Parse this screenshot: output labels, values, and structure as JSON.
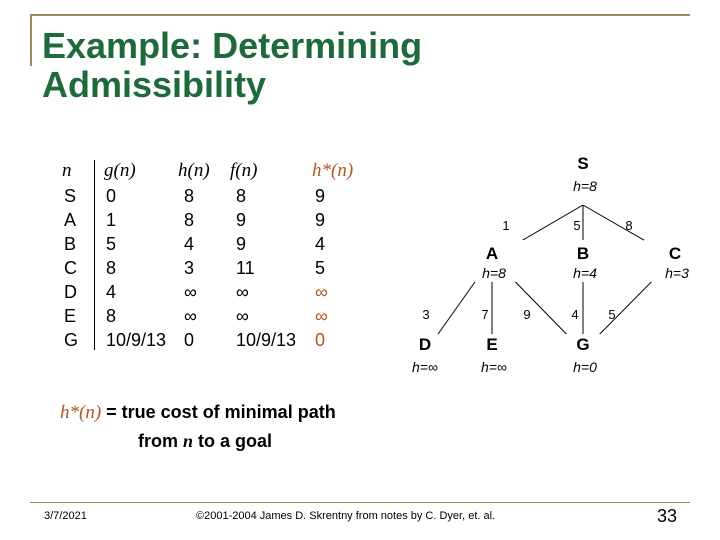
{
  "slide": {
    "title_line1": "Example: Determining",
    "title_line2": "Admissibility",
    "date": "3/7/2021",
    "copyright": "©2001-2004 James D. Skrentny from notes by C. Dyer, et. al.",
    "page_number": "33"
  },
  "table": {
    "headers": {
      "n": "n",
      "g": "g(n)",
      "h": "h(n)",
      "f": "f(n)",
      "hstar": "h*(n)"
    },
    "rows": [
      {
        "n": "S",
        "g": "0",
        "h": "8",
        "f": "8",
        "hstar": "9"
      },
      {
        "n": "A",
        "g": "1",
        "h": "8",
        "f": "9",
        "hstar": "9"
      },
      {
        "n": "B",
        "g": "5",
        "h": "4",
        "f": "9",
        "hstar": "4"
      },
      {
        "n": "C",
        "g": "8",
        "h": "3",
        "f": "11",
        "hstar": "5"
      },
      {
        "n": "D",
        "g": "4",
        "h": "∞",
        "f": "∞",
        "hstar": "∞"
      },
      {
        "n": "E",
        "g": "8",
        "h": "∞",
        "f": "∞",
        "hstar": "∞"
      },
      {
        "n": "G",
        "g": "10/9/13",
        "h": "0",
        "f": "10/9/13",
        "hstar": "0"
      }
    ]
  },
  "graph": {
    "nodes": [
      {
        "id": "S",
        "h": "h=8"
      },
      {
        "id": "A",
        "h": "h=8"
      },
      {
        "id": "B",
        "h": "h=4"
      },
      {
        "id": "C",
        "h": "h=3"
      },
      {
        "id": "D",
        "h": "h=∞"
      },
      {
        "id": "E",
        "h": "h=∞"
      },
      {
        "id": "G",
        "h": "h=0"
      }
    ],
    "edges": [
      {
        "from": "S",
        "to": "A",
        "cost": "1"
      },
      {
        "from": "S",
        "to": "B",
        "cost": "5"
      },
      {
        "from": "S",
        "to": "C",
        "cost": "8"
      },
      {
        "from": "A",
        "to": "D",
        "cost": "3"
      },
      {
        "from": "A",
        "to": "E",
        "cost": "7"
      },
      {
        "from": "A",
        "to": "G",
        "cost": "9"
      },
      {
        "from": "B",
        "to": "G",
        "cost": "4"
      },
      {
        "from": "C",
        "to": "G",
        "cost": "5"
      }
    ]
  },
  "note": {
    "symbol": "h*(n)",
    "text1": " = true cost of minimal path",
    "text2_pre": "from ",
    "text2_var": "n",
    "text2_post": " to a goal"
  },
  "colors": {
    "title": "#1d6b3a",
    "accent": "#b5541c",
    "rule": "#9b8a5a"
  }
}
